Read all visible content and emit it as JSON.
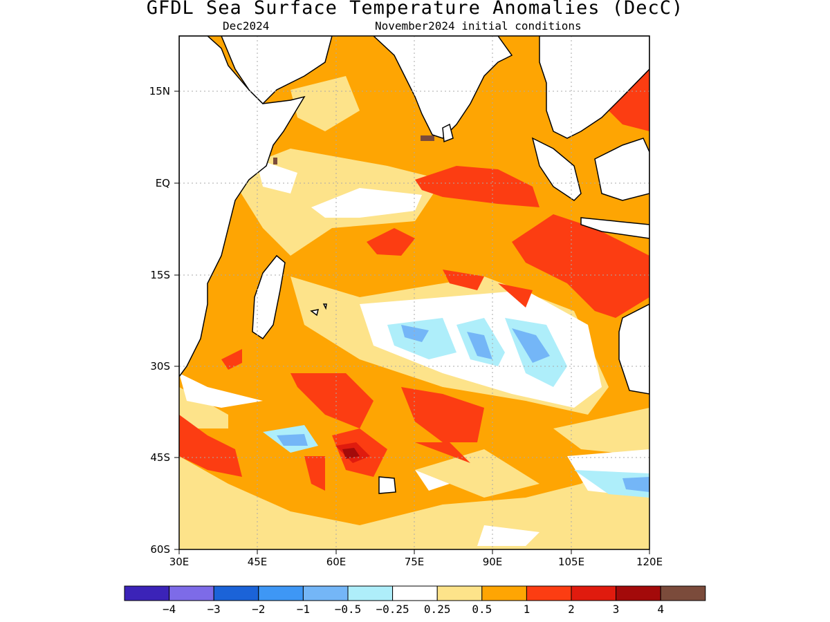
{
  "title": "GFDL Sea Surface Temperature Anomalies (DecC)",
  "subtitle_left": "Dec2024",
  "subtitle_right": "November2024 initial conditions",
  "lat_labels": [
    "15N",
    "EQ",
    "15S",
    "30S",
    "45S",
    "60S"
  ],
  "lon_labels": [
    "30E",
    "45E",
    "60E",
    "75E",
    "90E",
    "105E",
    "120E"
  ],
  "colorbar": {
    "colors": [
      "#3b23b8",
      "#7d6be8",
      "#1b63d8",
      "#3e97f5",
      "#74b6f7",
      "#aeeefa",
      "#ffffff",
      "#fde38a",
      "#fea503",
      "#fc3d12",
      "#e01b0e",
      "#a30a0a",
      "#7b4b3b"
    ],
    "labels": [
      "−4",
      "−3",
      "−2",
      "−1",
      "−0.5",
      "−0.25",
      "0.25",
      "0.5",
      "1",
      "2",
      "3",
      "4"
    ]
  },
  "colors": {
    "land": "#ffffff",
    "coast": "#000000",
    "grid": "#aaaaaa"
  }
}
